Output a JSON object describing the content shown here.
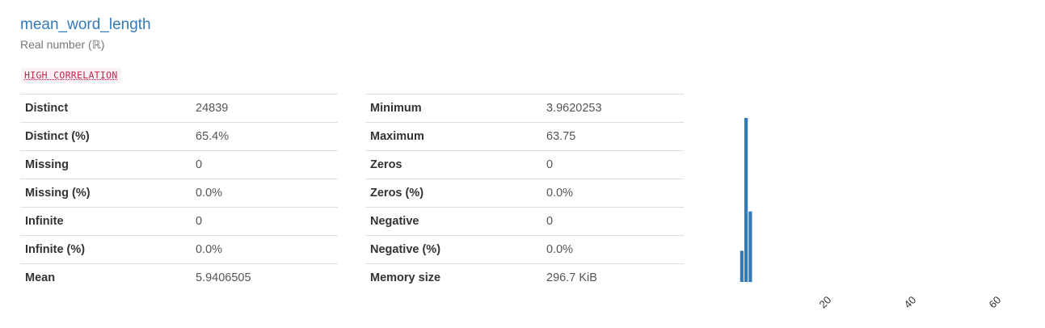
{
  "variable": {
    "name": "mean_word_length",
    "type": "Real number (ℝ)",
    "alert": "HIGH CORRELATION"
  },
  "stats_left": [
    {
      "label": "Distinct",
      "value": "24839"
    },
    {
      "label": "Distinct (%)",
      "value": "65.4%"
    },
    {
      "label": "Missing",
      "value": "0"
    },
    {
      "label": "Missing (%)",
      "value": "0.0%"
    },
    {
      "label": "Infinite",
      "value": "0"
    },
    {
      "label": "Infinite (%)",
      "value": "0.0%"
    },
    {
      "label": "Mean",
      "value": "5.9406505"
    }
  ],
  "stats_right": [
    {
      "label": "Minimum",
      "value": "3.9620253"
    },
    {
      "label": "Maximum",
      "value": "63.75"
    },
    {
      "label": "Zeros",
      "value": "0"
    },
    {
      "label": "Zeros (%)",
      "value": "0.0%"
    },
    {
      "label": "Negative",
      "value": "0"
    },
    {
      "label": "Negative (%)",
      "value": "0.0%"
    },
    {
      "label": "Memory size",
      "value": "296.7 KiB"
    }
  ],
  "colors": {
    "title": "#337ab7",
    "bar": "#337ab7",
    "alert_text": "#c7254e",
    "alert_bg": "#f9f2f4"
  },
  "chart_data": {
    "type": "bar",
    "title": "",
    "xlabel": "",
    "ylabel": "",
    "x_ticks": [
      "20",
      "40",
      "60"
    ],
    "bins": [
      {
        "x": 4.0,
        "value": 0.19
      },
      {
        "x": 5.0,
        "value": 1.0
      },
      {
        "x": 6.0,
        "value": 0.43
      }
    ]
  }
}
